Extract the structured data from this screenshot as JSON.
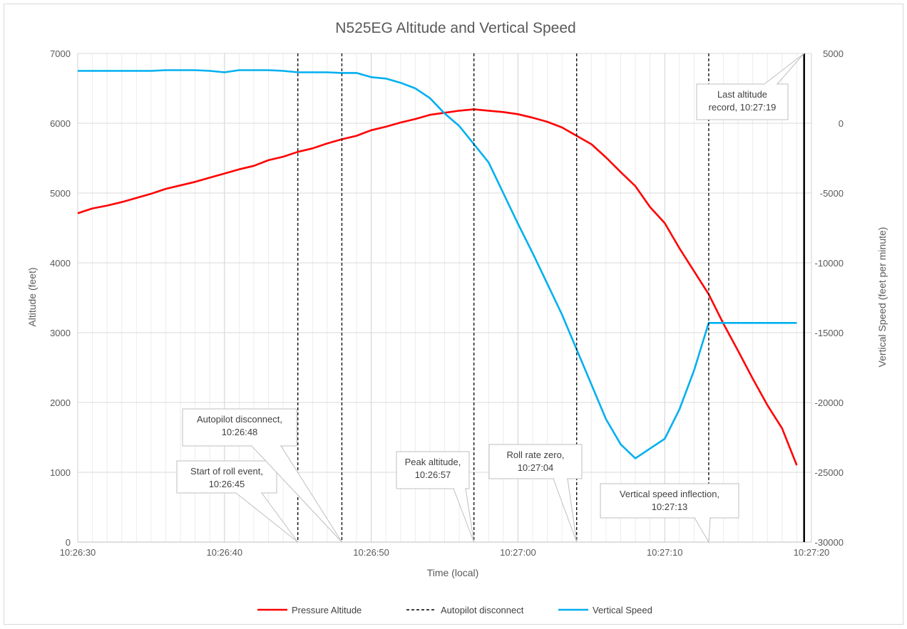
{
  "chart_data": {
    "type": "line",
    "title": "N525EG Altitude and Vertical Speed",
    "xlabel": "Time (local)",
    "ylabel": "Altitude (feet)",
    "y2label": "Vertical Speed (feet per minute)",
    "xlim_seconds_after_10_26_30": [
      0,
      50
    ],
    "x_ticks": [
      "10:26:30",
      "10:26:40",
      "10:26:50",
      "10:27:00",
      "10:27:10",
      "10:27:20"
    ],
    "ylim": [
      0,
      7000
    ],
    "y_ticks": [
      "0",
      "1000",
      "2000",
      "3000",
      "4000",
      "5000",
      "6000",
      "7000"
    ],
    "y2lim": [
      -30000,
      5000
    ],
    "y2_ticks": [
      "-30000",
      "-25000",
      "-20000",
      "-15000",
      "-10000",
      "-5000",
      "0",
      "5000"
    ],
    "grid": true,
    "legend": "bottom",
    "legend_entries": [
      {
        "label": "Pressure Altitude",
        "color": "#ff0000",
        "style": "solid"
      },
      {
        "label": "Autopilot disconnect",
        "color": "#000000",
        "style": "dashed"
      },
      {
        "label": "Vertical Speed",
        "color": "#00b0f0",
        "style": "solid"
      }
    ],
    "series": [
      {
        "name": "Pressure Altitude",
        "axis": "left",
        "color": "#ff0000",
        "x": [
          0,
          1,
          2,
          3,
          4,
          5,
          6,
          7,
          8,
          9,
          10,
          11,
          12,
          13,
          14,
          15,
          16,
          17,
          18,
          19,
          20,
          21,
          22,
          23,
          24,
          25,
          26,
          27,
          28,
          29,
          30,
          31,
          32,
          33,
          34,
          35,
          36,
          37,
          38,
          39,
          40,
          41,
          42,
          43,
          44,
          45,
          46,
          47,
          48,
          49
        ],
        "values": [
          4710,
          4780,
          4820,
          4870,
          4930,
          4990,
          5060,
          5110,
          5160,
          5220,
          5280,
          5340,
          5390,
          5470,
          5520,
          5590,
          5640,
          5710,
          5770,
          5820,
          5900,
          5950,
          6010,
          6060,
          6120,
          6150,
          6180,
          6200,
          6180,
          6160,
          6130,
          6080,
          6020,
          5940,
          5820,
          5700,
          5510,
          5300,
          5100,
          4800,
          4570,
          4210,
          3880,
          3550,
          3130,
          2740,
          2340,
          1960,
          1630,
          1100
        ]
      },
      {
        "name": "Vertical Speed",
        "axis": "right",
        "color": "#00b0f0",
        "x": [
          0,
          1,
          2,
          3,
          4,
          5,
          6,
          7,
          8,
          9,
          10,
          11,
          12,
          13,
          14,
          15,
          16,
          17,
          18,
          19,
          20,
          21,
          22,
          23,
          24,
          25,
          26,
          27,
          28,
          29,
          30,
          31,
          32,
          33,
          34,
          35,
          36,
          37,
          38,
          39,
          40,
          41,
          42,
          43,
          44,
          45,
          46,
          47,
          48,
          49
        ],
        "values": [
          3750,
          3750,
          3750,
          3750,
          3750,
          3750,
          3800,
          3800,
          3800,
          3750,
          3650,
          3800,
          3800,
          3800,
          3750,
          3650,
          3650,
          3650,
          3600,
          3600,
          3300,
          3200,
          2900,
          2500,
          1800,
          700,
          -200,
          -1500,
          -2800,
          -5000,
          -7200,
          -9300,
          -11500,
          -13700,
          -16200,
          -18700,
          -21200,
          -23000,
          -24000,
          -23300,
          -22600,
          -20500,
          -17700,
          -14300,
          -14300,
          -14300,
          -14300,
          -14300,
          -14300,
          -14300
        ]
      }
    ],
    "markers": [
      {
        "label": "Autopilot disconnect",
        "time": "10:26:45",
        "x": 15
      },
      {
        "label": "Autopilot disconnect",
        "time": "10:26:48",
        "x": 18
      },
      {
        "label": "Autopilot disconnect",
        "time": "10:26:57",
        "x": 27
      },
      {
        "label": "Autopilot disconnect",
        "time": "10:27:04",
        "x": 34
      },
      {
        "label": "Autopilot disconnect",
        "time": "10:27:13",
        "x": 43
      }
    ],
    "last_record_x": 49.5,
    "annotations": [
      {
        "text": [
          "Start of roll event,",
          "10:26:45"
        ],
        "x": 15
      },
      {
        "text": [
          "Autopilot disconnect,",
          "10:26:48"
        ],
        "x": 18
      },
      {
        "text": [
          "Peak altitude,",
          "10:26:57"
        ],
        "x": 27
      },
      {
        "text": [
          "Roll rate zero,",
          "10:27:04"
        ],
        "x": 34
      },
      {
        "text": [
          "Vertical speed inflection,",
          "10:27:13"
        ],
        "x": 43
      },
      {
        "text": [
          "Last altitude",
          "record, 10:27:19"
        ],
        "x": 49.5
      }
    ]
  },
  "colors": {
    "altitude": "#ff0000",
    "vertical_speed": "#00b0f0",
    "marker": "#000000",
    "grid": "#d9d9d9",
    "callout_border": "#bfbfbf"
  }
}
